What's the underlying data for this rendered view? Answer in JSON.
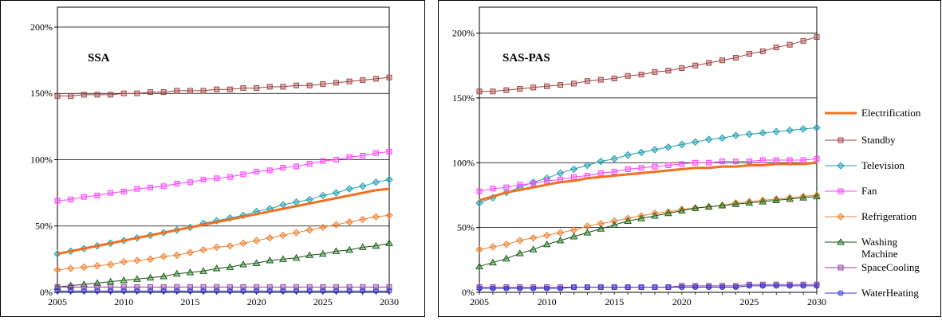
{
  "chart_data": [
    {
      "type": "line",
      "title": "SSA",
      "xlabel": "",
      "ylabel": "",
      "x": [
        2005,
        2006,
        2007,
        2008,
        2009,
        2010,
        2011,
        2012,
        2013,
        2014,
        2015,
        2016,
        2017,
        2018,
        2019,
        2020,
        2021,
        2022,
        2023,
        2024,
        2025,
        2026,
        2027,
        2028,
        2029,
        2030
      ],
      "xticks": [
        "2005",
        "2010",
        "2015",
        "2020",
        "2025",
        "2030"
      ],
      "yticks": [
        "0%",
        "50%",
        "100%",
        "150%",
        "200%"
      ],
      "ylim": [
        0,
        2.15
      ],
      "grid": "horizontal",
      "series": [
        {
          "name": "Electrification",
          "color": "#f07020",
          "marker": "none",
          "values": [
            0.29,
            0.31,
            0.33,
            0.35,
            0.37,
            0.39,
            0.41,
            0.43,
            0.45,
            0.47,
            0.49,
            0.51,
            0.53,
            0.55,
            0.57,
            0.59,
            0.61,
            0.63,
            0.65,
            0.67,
            0.69,
            0.71,
            0.73,
            0.75,
            0.77,
            0.78
          ]
        },
        {
          "name": "Standby",
          "color": "#a04040",
          "marker": "square",
          "values": [
            1.48,
            1.48,
            1.49,
            1.49,
            1.49,
            1.5,
            1.5,
            1.51,
            1.51,
            1.52,
            1.52,
            1.52,
            1.53,
            1.53,
            1.54,
            1.54,
            1.55,
            1.55,
            1.56,
            1.56,
            1.57,
            1.58,
            1.59,
            1.6,
            1.61,
            1.62
          ]
        },
        {
          "name": "Television",
          "color": "#20a0b0",
          "marker": "diamond",
          "values": [
            0.29,
            0.31,
            0.33,
            0.35,
            0.37,
            0.39,
            0.41,
            0.43,
            0.45,
            0.47,
            0.49,
            0.52,
            0.54,
            0.56,
            0.58,
            0.61,
            0.63,
            0.66,
            0.68,
            0.7,
            0.73,
            0.75,
            0.78,
            0.8,
            0.83,
            0.85
          ]
        },
        {
          "name": "Fan",
          "color": "#ff40ff",
          "marker": "square",
          "values": [
            0.69,
            0.7,
            0.72,
            0.73,
            0.75,
            0.76,
            0.78,
            0.79,
            0.8,
            0.82,
            0.83,
            0.85,
            0.86,
            0.87,
            0.89,
            0.91,
            0.92,
            0.94,
            0.95,
            0.97,
            0.99,
            1.0,
            1.02,
            1.03,
            1.05,
            1.06
          ]
        },
        {
          "name": "Refrigeration",
          "color": "#f08030",
          "marker": "diamond",
          "values": [
            0.17,
            0.18,
            0.19,
            0.2,
            0.21,
            0.23,
            0.24,
            0.25,
            0.27,
            0.28,
            0.3,
            0.32,
            0.34,
            0.35,
            0.37,
            0.39,
            0.41,
            0.43,
            0.45,
            0.47,
            0.49,
            0.51,
            0.53,
            0.55,
            0.57,
            0.58
          ]
        },
        {
          "name": "Washing Machine",
          "color": "#30a030",
          "marker": "triangle",
          "values": [
            0.04,
            0.05,
            0.06,
            0.07,
            0.08,
            0.09,
            0.1,
            0.11,
            0.12,
            0.14,
            0.15,
            0.16,
            0.18,
            0.19,
            0.21,
            0.22,
            0.24,
            0.25,
            0.26,
            0.28,
            0.29,
            0.31,
            0.32,
            0.34,
            0.35,
            0.37
          ]
        },
        {
          "name": "SpaceCooling",
          "color": "#9040a0",
          "marker": "square",
          "values": [
            0.04,
            0.04,
            0.04,
            0.04,
            0.04,
            0.04,
            0.04,
            0.04,
            0.04,
            0.04,
            0.04,
            0.04,
            0.04,
            0.04,
            0.04,
            0.04,
            0.04,
            0.04,
            0.04,
            0.04,
            0.04,
            0.04,
            0.04,
            0.04,
            0.04,
            0.04
          ]
        },
        {
          "name": "WaterHeating",
          "color": "#3030d0",
          "marker": "circle",
          "values": [
            0.01,
            0.01,
            0.01,
            0.01,
            0.01,
            0.01,
            0.01,
            0.01,
            0.01,
            0.01,
            0.01,
            0.01,
            0.01,
            0.01,
            0.01,
            0.01,
            0.01,
            0.01,
            0.01,
            0.01,
            0.01,
            0.01,
            0.01,
            0.01,
            0.01,
            0.01
          ]
        }
      ]
    },
    {
      "type": "line",
      "title": "SAS-PAS",
      "xlabel": "",
      "ylabel": "",
      "x": [
        2005,
        2006,
        2007,
        2008,
        2009,
        2010,
        2011,
        2012,
        2013,
        2014,
        2015,
        2016,
        2017,
        2018,
        2019,
        2020,
        2021,
        2022,
        2023,
        2024,
        2025,
        2026,
        2027,
        2028,
        2029,
        2030
      ],
      "xticks": [
        "2005",
        "2010",
        "2015",
        "2020",
        "2025",
        "2030"
      ],
      "yticks": [
        "0%",
        "50%",
        "100%",
        "150%",
        "200%"
      ],
      "ylim": [
        0,
        2.2
      ],
      "grid": "horizontal",
      "legend_position": "right",
      "series": [
        {
          "name": "Electrification",
          "color": "#f07020",
          "marker": "none",
          "values": [
            0.71,
            0.74,
            0.77,
            0.79,
            0.81,
            0.83,
            0.85,
            0.86,
            0.88,
            0.89,
            0.9,
            0.91,
            0.92,
            0.93,
            0.94,
            0.95,
            0.96,
            0.96,
            0.97,
            0.97,
            0.98,
            0.98,
            0.99,
            0.99,
            0.99,
            1.0
          ]
        },
        {
          "name": "Standby",
          "color": "#a04040",
          "marker": "square",
          "values": [
            1.55,
            1.55,
            1.56,
            1.57,
            1.58,
            1.59,
            1.6,
            1.61,
            1.63,
            1.64,
            1.65,
            1.67,
            1.68,
            1.7,
            1.71,
            1.73,
            1.75,
            1.77,
            1.79,
            1.81,
            1.84,
            1.86,
            1.89,
            1.91,
            1.94,
            1.97
          ]
        },
        {
          "name": "Television",
          "color": "#20a0b0",
          "marker": "diamond",
          "values": [
            0.69,
            0.73,
            0.77,
            0.81,
            0.85,
            0.88,
            0.92,
            0.95,
            0.98,
            1.01,
            1.03,
            1.06,
            1.08,
            1.1,
            1.12,
            1.14,
            1.16,
            1.18,
            1.19,
            1.21,
            1.22,
            1.23,
            1.24,
            1.25,
            1.26,
            1.27
          ]
        },
        {
          "name": "Fan",
          "color": "#ff40ff",
          "marker": "square",
          "values": [
            0.78,
            0.8,
            0.81,
            0.83,
            0.84,
            0.86,
            0.87,
            0.89,
            0.9,
            0.92,
            0.93,
            0.95,
            0.96,
            0.97,
            0.98,
            0.99,
            1.0,
            1.0,
            1.01,
            1.01,
            1.01,
            1.02,
            1.02,
            1.02,
            1.02,
            1.03
          ]
        },
        {
          "name": "Refrigeration",
          "color": "#f08030",
          "marker": "diamond",
          "values": [
            0.33,
            0.35,
            0.37,
            0.4,
            0.42,
            0.44,
            0.46,
            0.48,
            0.51,
            0.53,
            0.55,
            0.57,
            0.59,
            0.61,
            0.62,
            0.64,
            0.65,
            0.66,
            0.67,
            0.69,
            0.7,
            0.71,
            0.72,
            0.73,
            0.74,
            0.75
          ]
        },
        {
          "name": "Washing Machine",
          "color": "#30a030",
          "marker": "triangle",
          "values": [
            0.2,
            0.23,
            0.26,
            0.3,
            0.33,
            0.37,
            0.4,
            0.43,
            0.46,
            0.49,
            0.52,
            0.55,
            0.57,
            0.59,
            0.61,
            0.63,
            0.65,
            0.66,
            0.67,
            0.68,
            0.69,
            0.7,
            0.71,
            0.72,
            0.73,
            0.74
          ]
        },
        {
          "name": "SpaceCooling",
          "color": "#9040a0",
          "marker": "square",
          "values": [
            0.04,
            0.04,
            0.04,
            0.04,
            0.04,
            0.04,
            0.04,
            0.04,
            0.04,
            0.04,
            0.04,
            0.04,
            0.04,
            0.04,
            0.04,
            0.05,
            0.05,
            0.05,
            0.05,
            0.05,
            0.06,
            0.06,
            0.06,
            0.06,
            0.06,
            0.06
          ]
        },
        {
          "name": "WaterHeating",
          "color": "#3030d0",
          "marker": "circle",
          "values": [
            0.03,
            0.03,
            0.03,
            0.03,
            0.03,
            0.03,
            0.03,
            0.04,
            0.04,
            0.04,
            0.04,
            0.04,
            0.04,
            0.04,
            0.04,
            0.04,
            0.04,
            0.04,
            0.04,
            0.04,
            0.05,
            0.05,
            0.05,
            0.05,
            0.05,
            0.05
          ]
        }
      ]
    }
  ],
  "legend": {
    "items": [
      {
        "label": "Electrification",
        "series": "Electrification"
      },
      {
        "label": "Standby",
        "series": "Standby"
      },
      {
        "label": "Television",
        "series": "Television"
      },
      {
        "label": "Fan",
        "series": "Fan"
      },
      {
        "label": "Refrigeration",
        "series": "Refrigeration"
      },
      {
        "label": "Washing Machine",
        "series": "Washing Machine"
      },
      {
        "label": "SpaceCooling",
        "series": "SpaceCooling"
      },
      {
        "label": "WaterHeating",
        "series": "WaterHeating"
      }
    ]
  }
}
